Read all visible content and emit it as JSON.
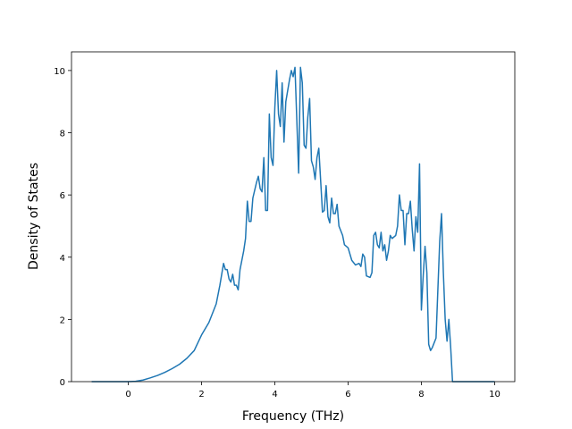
{
  "chart_data": {
    "type": "line",
    "xlabel": "Frequency (THz)",
    "ylabel": "Density of States",
    "x": [
      -1,
      0,
      0.2,
      0.4,
      0.6,
      0.8,
      1.0,
      1.2,
      1.4,
      1.6,
      1.8,
      2.0,
      2.2,
      2.4,
      2.5,
      2.6,
      2.65,
      2.7,
      2.75,
      2.8,
      2.85,
      2.9,
      2.95,
      3.0,
      3.05,
      3.15,
      3.2,
      3.25,
      3.3,
      3.35,
      3.4,
      3.5,
      3.55,
      3.6,
      3.65,
      3.7,
      3.75,
      3.8,
      3.85,
      3.9,
      3.95,
      4.0,
      4.05,
      4.1,
      4.15,
      4.2,
      4.25,
      4.3,
      4.4,
      4.45,
      4.5,
      4.55,
      4.65,
      4.7,
      4.75,
      4.8,
      4.85,
      4.9,
      4.95,
      5.0,
      5.05,
      5.1,
      5.15,
      5.2,
      5.3,
      5.35,
      5.4,
      5.45,
      5.5,
      5.55,
      5.6,
      5.65,
      5.7,
      5.75,
      5.85,
      5.9,
      6.0,
      6.1,
      6.2,
      6.3,
      6.35,
      6.4,
      6.45,
      6.5,
      6.6,
      6.65,
      6.7,
      6.75,
      6.8,
      6.85,
      6.9,
      6.95,
      7.0,
      7.05,
      7.1,
      7.15,
      7.2,
      7.3,
      7.35,
      7.4,
      7.45,
      7.5,
      7.55,
      7.6,
      7.65,
      7.7,
      7.75,
      7.8,
      7.85,
      7.9,
      7.95,
      8.0,
      8.05,
      8.1,
      8.15,
      8.2,
      8.25,
      8.3,
      8.4,
      8.5,
      8.55,
      8.6,
      8.65,
      8.7,
      8.75,
      8.8,
      8.85,
      10
    ],
    "series": [
      {
        "color": "#1f77b4",
        "values": [
          0,
          0,
          0.01,
          0.05,
          0.12,
          0.2,
          0.3,
          0.42,
          0.56,
          0.75,
          1.0,
          1.5,
          1.9,
          2.5,
          3.1,
          3.8,
          3.6,
          3.6,
          3.3,
          3.2,
          3.45,
          3.1,
          3.1,
          2.95,
          3.6,
          4.2,
          4.6,
          5.8,
          5.15,
          5.15,
          5.9,
          6.4,
          6.6,
          6.2,
          6.1,
          7.2,
          5.5,
          5.5,
          8.6,
          7.2,
          6.95,
          8.8,
          10.0,
          8.6,
          8.2,
          9.6,
          7.7,
          9.0,
          9.7,
          10.0,
          9.8,
          10.1,
          6.7,
          10.1,
          9.6,
          7.6,
          7.5,
          8.5,
          9.1,
          7.1,
          6.9,
          6.5,
          7.2,
          7.5,
          5.45,
          5.5,
          6.3,
          5.3,
          5.1,
          5.9,
          5.4,
          5.4,
          5.7,
          5.0,
          4.7,
          4.4,
          4.3,
          3.9,
          3.75,
          3.8,
          3.7,
          4.1,
          4.0,
          3.4,
          3.35,
          3.5,
          4.7,
          4.8,
          4.4,
          4.3,
          4.8,
          4.2,
          4.4,
          3.9,
          4.2,
          4.7,
          4.6,
          4.7,
          5.0,
          6.0,
          5.5,
          5.5,
          4.4,
          5.4,
          5.4,
          5.8,
          4.9,
          4.2,
          5.3,
          4.8,
          7.0,
          2.3,
          3.4,
          4.35,
          3.5,
          1.2,
          1.0,
          1.1,
          1.4,
          4.5,
          5.4,
          3.5,
          2.0,
          1.3,
          2.0,
          1.1,
          0,
          0
        ]
      }
    ],
    "xlim": [
      -1.55,
      10.55
    ],
    "ylim": [
      0,
      10.6
    ],
    "xticks": [
      0,
      2,
      4,
      6,
      8,
      10
    ],
    "yticks": [
      0,
      2,
      4,
      6,
      8,
      10
    ]
  }
}
